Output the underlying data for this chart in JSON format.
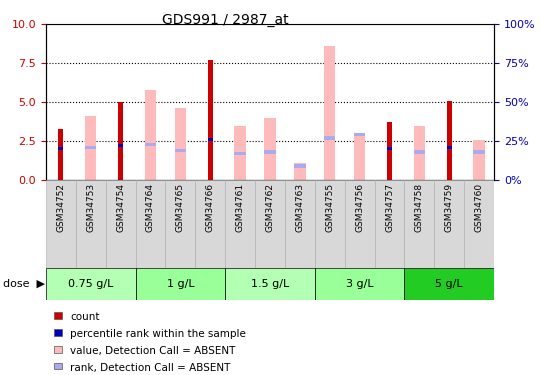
{
  "title": "GDS991 / 2987_at",
  "samples": [
    "GSM34752",
    "GSM34753",
    "GSM34754",
    "GSM34764",
    "GSM34765",
    "GSM34766",
    "GSM34761",
    "GSM34762",
    "GSM34763",
    "GSM34755",
    "GSM34756",
    "GSM34757",
    "GSM34758",
    "GSM34759",
    "GSM34760"
  ],
  "dose_groups": [
    {
      "label": "0.75 g/L",
      "indices": [
        0,
        1,
        2
      ],
      "color": "#b3ffb3"
    },
    {
      "label": "1 g/L",
      "indices": [
        3,
        4,
        5
      ],
      "color": "#99ff99"
    },
    {
      "label": "1.5 g/L",
      "indices": [
        6,
        7,
        8
      ],
      "color": "#b3ffb3"
    },
    {
      "label": "3 g/L",
      "indices": [
        9,
        10,
        11
      ],
      "color": "#99ff99"
    },
    {
      "label": "5 g/L",
      "indices": [
        12,
        13,
        14
      ],
      "color": "#22cc22"
    }
  ],
  "red_bar_values": [
    3.3,
    0.0,
    5.0,
    0.0,
    0.0,
    7.7,
    0.0,
    0.0,
    0.0,
    0.0,
    0.0,
    3.7,
    0.0,
    5.1,
    0.0
  ],
  "pink_bar_values": [
    0.0,
    4.1,
    0.0,
    5.8,
    4.6,
    0.0,
    3.5,
    4.0,
    1.1,
    8.6,
    2.9,
    0.0,
    3.5,
    0.0,
    2.6
  ],
  "blue_mark_values": [
    2.0,
    0.0,
    2.2,
    0.0,
    0.0,
    2.6,
    0.0,
    0.0,
    0.0,
    0.0,
    0.0,
    2.0,
    0.0,
    2.1,
    0.0
  ],
  "lblue_mark_values": [
    0.0,
    2.1,
    0.0,
    2.3,
    1.9,
    0.0,
    1.7,
    1.8,
    0.9,
    2.7,
    2.9,
    0.0,
    1.8,
    0.0,
    1.8
  ],
  "ylim_left": [
    0,
    10
  ],
  "ylim_right": [
    0,
    100
  ],
  "yticks_left": [
    0,
    2.5,
    5,
    7.5,
    10
  ],
  "yticks_right": [
    0,
    25,
    50,
    75,
    100
  ],
  "red_color": "#cc0000",
  "pink_color": "#ffbbbb",
  "blue_color": "#0000bb",
  "light_blue_color": "#aaaaee",
  "gray_col_color": "#d8d8d8",
  "legend_items": [
    {
      "color": "#cc0000",
      "label": "count"
    },
    {
      "color": "#0000bb",
      "label": "percentile rank within the sample"
    },
    {
      "color": "#ffbbbb",
      "label": "value, Detection Call = ABSENT"
    },
    {
      "color": "#aaaaee",
      "label": "rank, Detection Call = ABSENT"
    }
  ]
}
